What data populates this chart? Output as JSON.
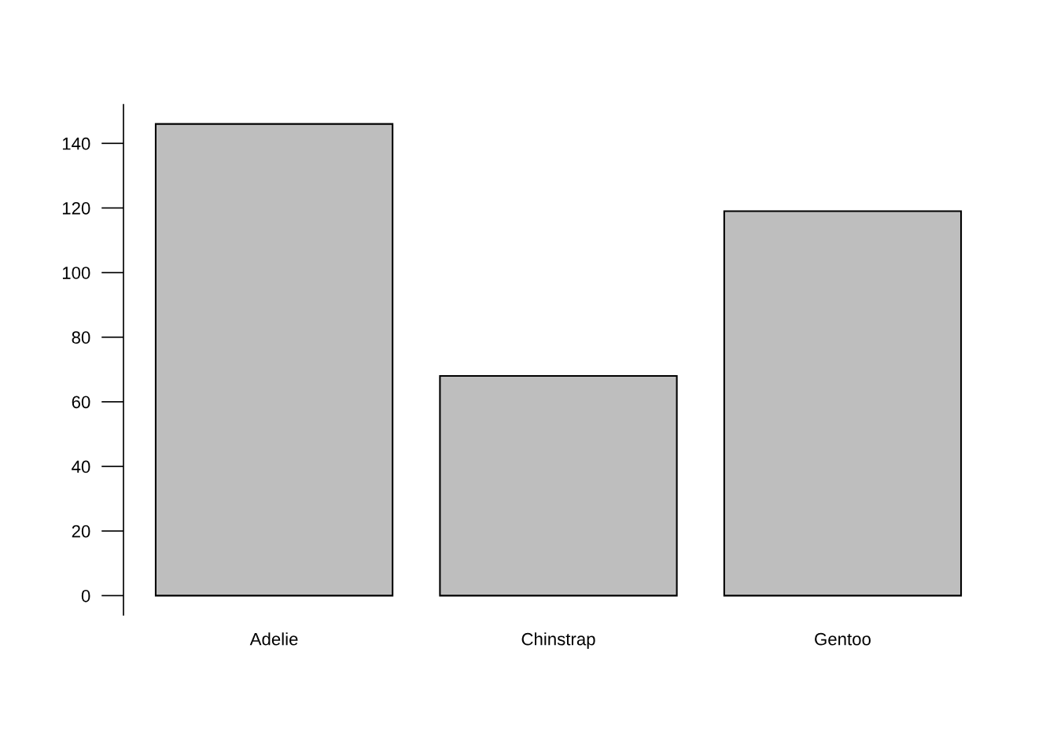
{
  "chart_data": {
    "type": "bar",
    "categories": [
      "Adelie",
      "Chinstrap",
      "Gentoo"
    ],
    "values": [
      146,
      68,
      119
    ],
    "color": "#bebebe",
    "ylim": [
      -6,
      152
    ],
    "yticks": [
      0,
      20,
      40,
      60,
      80,
      100,
      120,
      140
    ],
    "grid": false,
    "legend": false
  }
}
